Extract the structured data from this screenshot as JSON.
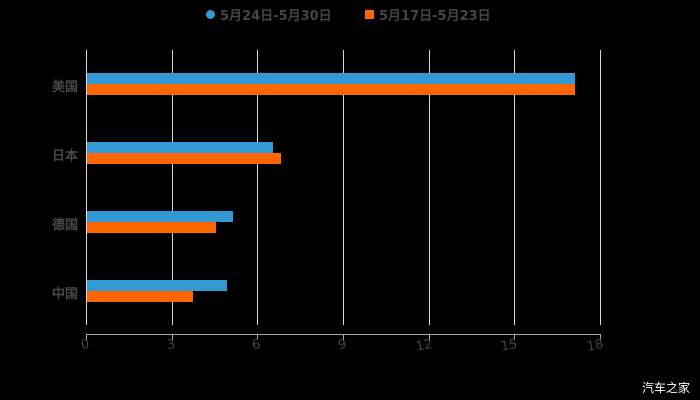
{
  "chart_data": {
    "type": "bar",
    "orientation": "horizontal",
    "title": "",
    "xlabel": "",
    "ylabel": "",
    "categories": [
      "美国",
      "日本",
      "德国",
      "中国"
    ],
    "series": [
      {
        "name": "5月24日-5月30日",
        "color": "#3399D4",
        "values": [
          17.1,
          6.5,
          5.1,
          4.9
        ]
      },
      {
        "name": "5月17日-5月23日",
        "color": "#FF6600",
        "values": [
          17.1,
          6.8,
          4.5,
          3.7
        ]
      }
    ],
    "xlim": [
      0,
      18
    ],
    "xticks": [
      "0",
      "3",
      "6",
      "9",
      "12",
      "15",
      "18"
    ],
    "grid": "vertical",
    "legend_position": "top"
  },
  "legend": [
    {
      "label": "5月24日-5月30日",
      "color": "#3399D4",
      "shape": "circle"
    },
    {
      "label": "5月17日-5月23日",
      "color": "#FF6600",
      "shape": "square"
    }
  ],
  "watermark": "汽车之家"
}
